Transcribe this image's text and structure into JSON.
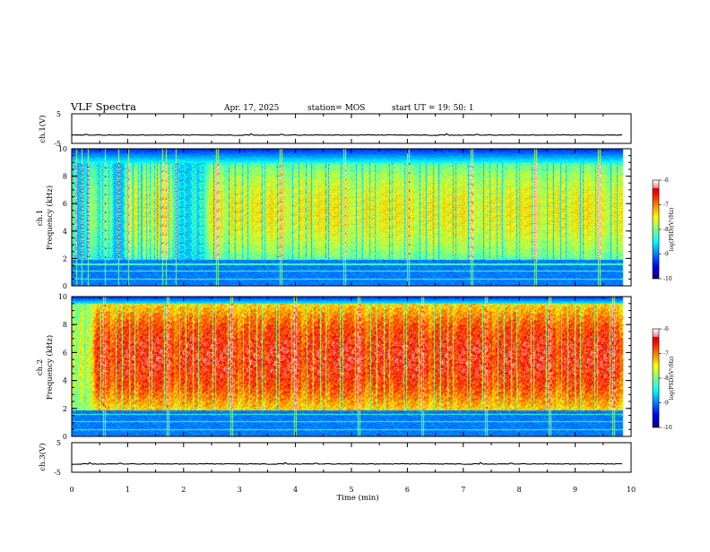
{
  "header": {
    "title": "VLF Spectra",
    "date": "Apr. 17, 2025",
    "station": "station= MOS",
    "start": "start  UT =   19: 50: 1"
  },
  "chart_data": [
    {
      "type": "line",
      "name": "channel-1-waveform",
      "ylabel": "ch.1(V)",
      "ylim": [
        -5,
        5
      ],
      "yticks": [
        "5",
        "-5"
      ],
      "xlim": [
        0,
        10
      ],
      "baseline": -2.2
    },
    {
      "type": "heatmap",
      "name": "channel-1-spectrogram",
      "ylabel_line1": "ch.1",
      "ylabel_line2": "Frequency (kHz)",
      "ylim": [
        0,
        10
      ],
      "yticks": [
        "0",
        "2",
        "4",
        "6",
        "8",
        "10"
      ],
      "xlim": [
        0,
        10
      ],
      "data_end_min": 9.85,
      "colorbar": {
        "label": "log(PSD)(V²/Hz)",
        "ticks": [
          "-6",
          "-7",
          "-8",
          "-9",
          "-10"
        ],
        "range": [
          -10,
          -6
        ]
      },
      "features": {
        "noise_floor_khz": 1.9,
        "emission_band_khz": [
          1.9,
          9.0
        ],
        "hum_lines_khz": [
          0.5,
          1.1,
          1.6
        ],
        "dominant_level": "cyan-green"
      }
    },
    {
      "type": "heatmap",
      "name": "channel-2-spectrogram",
      "ylabel_line1": "ch.2",
      "ylabel_line2": "Frequency (kHz)",
      "ylim": [
        0,
        10
      ],
      "yticks": [
        "0",
        "2",
        "4",
        "6",
        "8",
        "10"
      ],
      "xlim": [
        0,
        10
      ],
      "data_end_min": 9.85,
      "colorbar": {
        "label": "log(PSD)(V²/Hz)",
        "ticks": [
          "-6",
          "-7",
          "-8",
          "-9",
          "-10"
        ],
        "range": [
          -10,
          -6
        ]
      },
      "features": {
        "noise_floor_khz": 1.9,
        "emission_band_khz": [
          1.9,
          9.5
        ],
        "hum_lines_khz": [
          0.5,
          1.1,
          1.6
        ],
        "dominant_level": "red"
      }
    },
    {
      "type": "line",
      "name": "channel-3-waveform",
      "ylabel": "ch.3(V)",
      "ylim": [
        -5,
        5
      ],
      "yticks": [
        "5",
        "-5"
      ],
      "xlim": [
        0,
        10
      ],
      "baseline": -2.2,
      "xlabel": "Time  (min)",
      "xticks": [
        "0",
        "1",
        "2",
        "3",
        "4",
        "5",
        "6",
        "7",
        "8",
        "9",
        "10"
      ]
    }
  ]
}
